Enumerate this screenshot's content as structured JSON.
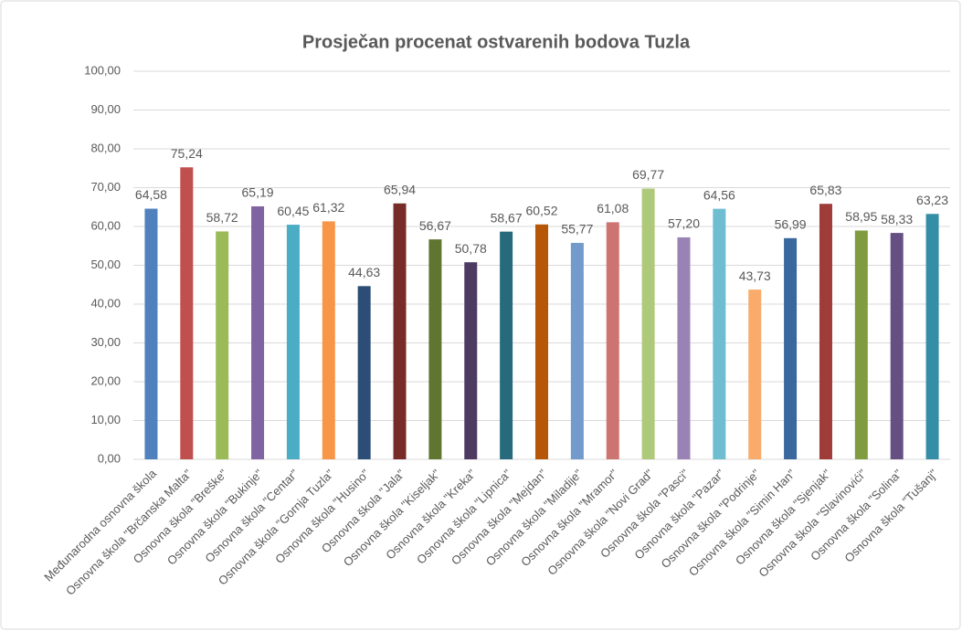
{
  "chart_data": {
    "type": "bar",
    "title": "Prosječan procenat ostvarenih bodova Tuzla",
    "categories": [
      "Međunarodna osnovna škola",
      "Osnovna škola \"Brčanska Malta\"",
      "Osnovna škola \"Breške\"",
      "Osnovna škola \"Bukinje\"",
      "Osnovna škola \"Centar\"",
      "Osnovna škola \"Gornja Tuzla\"",
      "Osnovna škola \"Husino\"",
      "Osnovna škola \"Jala\"",
      "Osnovna škola \"Kiseljak\"",
      "Osnovna škola \"Kreka\"",
      "Osnovna škola \"Lipnica\"",
      "Osnovna škola \"Mejdan\"",
      "Osnovna škola \"Miladije\"",
      "Osnovna škola \"Mramor\"",
      "Osnovna škola \"Novi Grad\"",
      "Osnovna škola \"Pasci\"",
      "Osnovna škola \"Pazar\"",
      "Osnovna škola \"Podrinje\"",
      "Osnovna škola \"Simin Han\"",
      "Osnovna škola \"Sjenjak\"",
      "Osnovna škola \"Slavinovići\"",
      "Osnovna škola \"Solina\"",
      "Osnovna škola \"Tušanj\""
    ],
    "values": [
      64.58,
      75.24,
      58.72,
      65.19,
      60.45,
      61.32,
      44.63,
      65.94,
      56.67,
      50.78,
      58.67,
      60.52,
      55.77,
      61.08,
      69.77,
      57.2,
      64.56,
      43.73,
      56.99,
      65.83,
      58.95,
      58.33,
      63.23
    ],
    "value_labels": [
      "64,58",
      "75,24",
      "58,72",
      "65,19",
      "60,45",
      "61,32",
      "44,63",
      "65,94",
      "56,67",
      "50,78",
      "58,67",
      "60,52",
      "55,77",
      "61,08",
      "69,77",
      "57,20",
      "64,56",
      "43,73",
      "56,99",
      "65,83",
      "58,95",
      "58,33",
      "63,23"
    ],
    "colors": [
      "#4f81bd",
      "#c0504d",
      "#9bbb59",
      "#8064a2",
      "#4bacc6",
      "#f79646",
      "#2c4d75",
      "#772c2a",
      "#5f7530",
      "#4d3b62",
      "#276a7c",
      "#b65708",
      "#729aca",
      "#cd7371",
      "#afc97a",
      "#9983b5",
      "#6fbdd1",
      "#f9ab6b",
      "#3a679c",
      "#9f3b38",
      "#7f9c40",
      "#664f82",
      "#358ea6"
    ],
    "ylim": [
      0,
      100
    ],
    "yticks": [
      {
        "value": 0,
        "label": "0,00"
      },
      {
        "value": 10,
        "label": "10,00"
      },
      {
        "value": 20,
        "label": "20,00"
      },
      {
        "value": 30,
        "label": "30,00"
      },
      {
        "value": 40,
        "label": "40,00"
      },
      {
        "value": 50,
        "label": "50,00"
      },
      {
        "value": 60,
        "label": "60,00"
      },
      {
        "value": 70,
        "label": "70,00"
      },
      {
        "value": 80,
        "label": "80,00"
      },
      {
        "value": 90,
        "label": "90,00"
      },
      {
        "value": 100,
        "label": "100,00"
      }
    ],
    "grid": true
  }
}
